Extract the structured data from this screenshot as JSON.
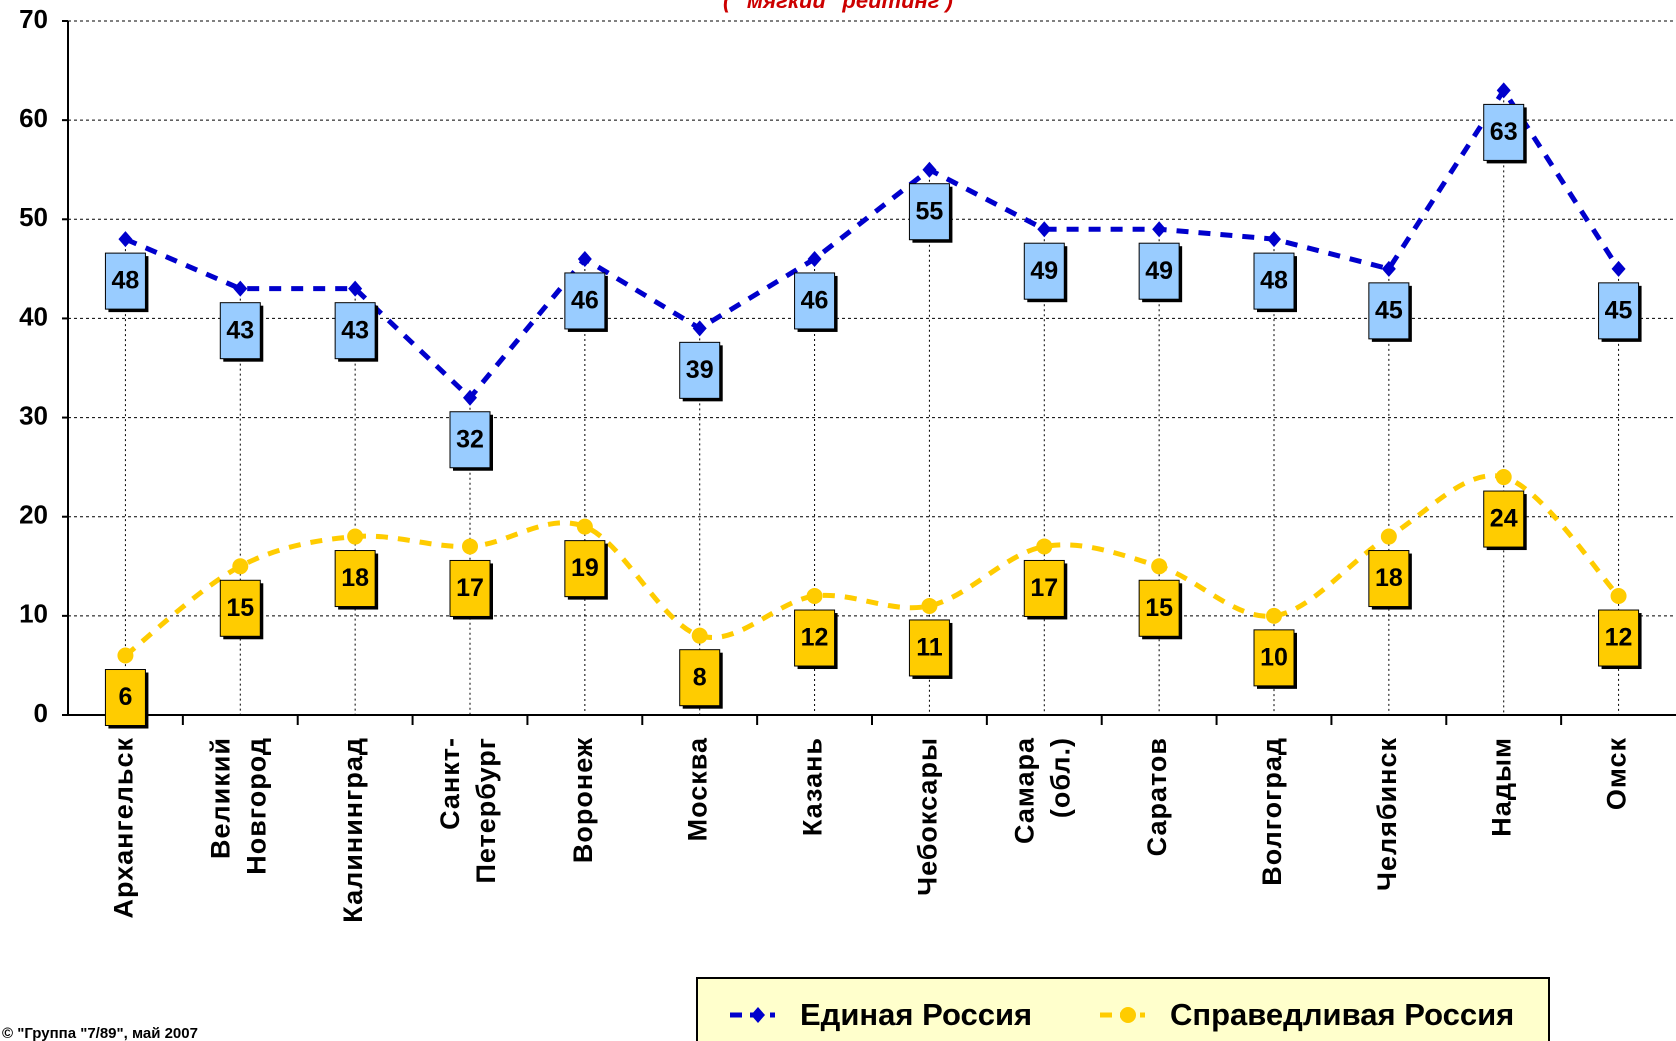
{
  "chart_data": {
    "type": "line",
    "subtitle": "( \"мягкий\" рейтинг )",
    "footer": "© \"Группа \"7/89\", май 2007",
    "categories": [
      "Архангельск",
      "Великий\nНовгород",
      "Калининград",
      "Санкт-\nПетербург",
      "Воронеж",
      "Москва",
      "Казань",
      "Чебоксары",
      "Самара\n(обл.)",
      "Саратов",
      "Волгоград",
      "Челябинск",
      "Надым",
      "Омск"
    ],
    "series": [
      {
        "name": "Единая Россия",
        "color": "#0000cc",
        "label_fill": "#99ccff",
        "marker": "diamond",
        "values": [
          48,
          43,
          43,
          32,
          46,
          39,
          46,
          55,
          49,
          49,
          48,
          45,
          63,
          45
        ]
      },
      {
        "name": "Справедливая Россия",
        "color": "#ffcc00",
        "label_fill": "#ffcc00",
        "marker": "circle",
        "values": [
          6,
          15,
          18,
          17,
          19,
          8,
          12,
          11,
          17,
          15,
          10,
          18,
          24,
          12
        ]
      }
    ],
    "ylim": [
      0,
      70
    ],
    "yticks": [
      0,
      10,
      20,
      30,
      40,
      50,
      60,
      70
    ],
    "grid": true
  }
}
